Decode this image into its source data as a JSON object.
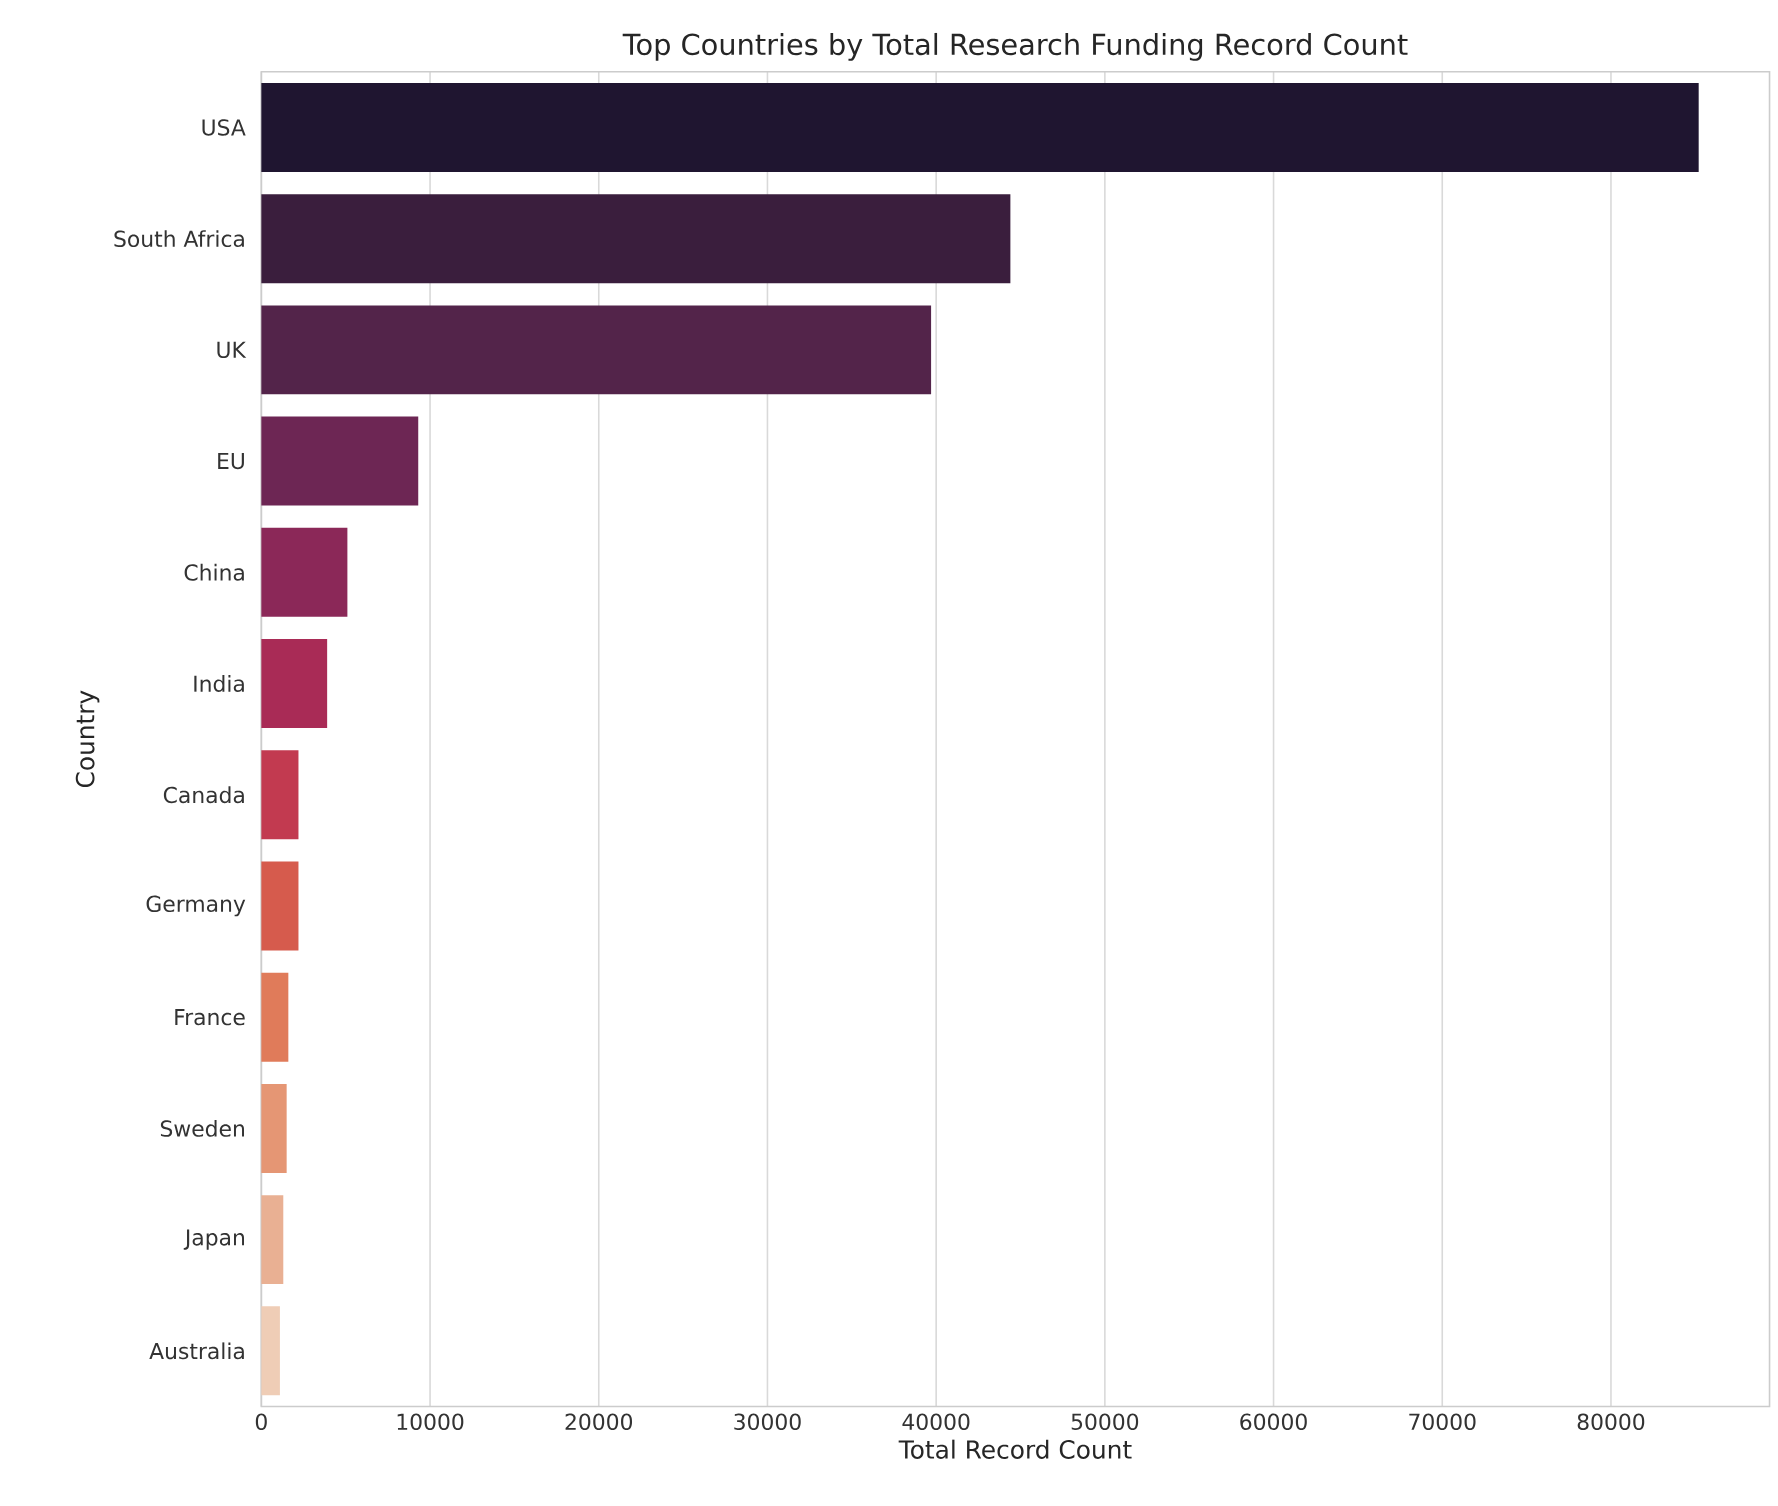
{
  "chart_data": {
    "type": "bar",
    "orientation": "horizontal",
    "title": "Top Countries by Total Research Funding Record Count",
    "xlabel": "Total Record Count",
    "ylabel": "Country",
    "categories": [
      "USA",
      "South Africa",
      "UK",
      "EU",
      "China",
      "India",
      "Canada",
      "Germany",
      "France",
      "Sweden",
      "Japan",
      "Australia"
    ],
    "values": [
      85200,
      44400,
      39700,
      9300,
      5100,
      3900,
      2200,
      2200,
      1600,
      1500,
      1300,
      1100
    ],
    "colors": [
      "#1f1530",
      "#3a1e3d",
      "#53244a",
      "#6d2654",
      "#8b2858",
      "#a92b56",
      "#c23a50",
      "#d65b4d",
      "#e07b5a",
      "#e59674",
      "#e9b093",
      "#efcdb6"
    ],
    "xlim": [
      0,
      89400
    ],
    "xticks": [
      0,
      10000,
      20000,
      30000,
      40000,
      50000,
      60000,
      70000,
      80000
    ],
    "grid": "x"
  }
}
